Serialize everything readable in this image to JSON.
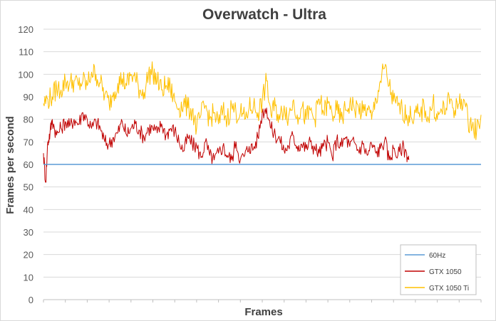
{
  "chart_data": {
    "type": "line",
    "title": "Overwatch - Ultra",
    "xlabel": "Frames",
    "ylabel": "Frames per second",
    "ylim": [
      0,
      120
    ],
    "yticks": [
      "0",
      "10",
      "20",
      "30",
      "40",
      "50",
      "60",
      "70",
      "80",
      "90",
      "100",
      "110",
      "120"
    ],
    "x_range": [
      0,
      1000
    ],
    "grid": "horizontal",
    "legend_position": "bottom-right",
    "series": [
      {
        "name": "60Hz",
        "color": "#5b9bd5",
        "x": [
          0,
          1000
        ],
        "values": [
          60,
          60
        ]
      },
      {
        "name": "GTX 1050",
        "color": "#c00000",
        "x": [
          0,
          5,
          10,
          15,
          20,
          30,
          40,
          50,
          60,
          70,
          80,
          90,
          100,
          110,
          120,
          130,
          140,
          150,
          160,
          170,
          180,
          190,
          200,
          210,
          220,
          230,
          240,
          250,
          260,
          270,
          280,
          290,
          300,
          310,
          320,
          330,
          340,
          350,
          360,
          370,
          380,
          390,
          400,
          410,
          420,
          430,
          440,
          450,
          460,
          470,
          480,
          490,
          500,
          510,
          520,
          530,
          540,
          550,
          560,
          570,
          580,
          590,
          600,
          610,
          620,
          630,
          640,
          650,
          660,
          670,
          680,
          690,
          700,
          710,
          720,
          730,
          740,
          750,
          760,
          770,
          780,
          790,
          800,
          810,
          820,
          830,
          835
        ],
        "values": [
          65,
          52,
          70,
          74,
          80,
          73,
          76,
          79,
          77,
          80,
          78,
          83,
          80,
          76,
          79,
          76,
          70,
          69,
          72,
          74,
          79,
          73,
          76,
          78,
          75,
          72,
          76,
          76,
          74,
          78,
          73,
          76,
          75,
          70,
          66,
          72,
          69,
          68,
          63,
          70,
          64,
          62,
          65,
          68,
          64,
          62,
          70,
          62,
          64,
          68,
          67,
          72,
          83,
          85,
          76,
          73,
          71,
          66,
          68,
          73,
          68,
          69,
          67,
          70,
          67,
          65,
          68,
          70,
          63,
          71,
          68,
          72,
          68,
          70,
          66,
          69,
          64,
          69,
          65,
          67,
          71,
          62,
          67,
          64,
          68,
          65,
          62
        ]
      },
      {
        "name": "GTX 1050 Ti",
        "color": "#ffc000",
        "x": [
          0,
          10,
          20,
          30,
          40,
          50,
          60,
          70,
          80,
          90,
          100,
          110,
          120,
          130,
          140,
          150,
          160,
          170,
          180,
          190,
          200,
          210,
          220,
          230,
          240,
          250,
          260,
          270,
          280,
          290,
          300,
          310,
          320,
          330,
          340,
          350,
          360,
          370,
          380,
          390,
          400,
          410,
          420,
          430,
          440,
          450,
          460,
          470,
          480,
          490,
          500,
          510,
          520,
          530,
          540,
          550,
          560,
          570,
          580,
          590,
          600,
          610,
          620,
          630,
          640,
          650,
          660,
          670,
          680,
          690,
          700,
          710,
          720,
          730,
          740,
          750,
          760,
          770,
          780,
          790,
          800,
          810,
          820,
          830,
          840,
          850,
          860,
          870,
          880,
          890,
          900,
          910,
          920,
          930,
          940,
          950,
          960,
          970,
          980,
          990,
          1000
        ],
        "values": [
          87,
          89,
          90,
          94,
          93,
          97,
          96,
          97,
          95,
          97,
          95,
          101,
          100,
          96,
          91,
          87,
          92,
          96,
          98,
          95,
          100,
          98,
          93,
          92,
          100,
          101,
          97,
          93,
          95,
          94,
          88,
          85,
          87,
          85,
          84,
          76,
          82,
          86,
          80,
          83,
          78,
          84,
          80,
          86,
          83,
          83,
          80,
          85,
          86,
          83,
          88,
          97,
          82,
          86,
          80,
          86,
          81,
          88,
          82,
          85,
          80,
          84,
          80,
          89,
          83,
          87,
          82,
          84,
          80,
          84,
          87,
          85,
          85,
          83,
          85,
          80,
          89,
          97,
          103,
          95,
          88,
          86,
          84,
          82,
          81,
          83,
          81,
          86,
          80,
          88,
          80,
          84,
          85,
          89,
          84,
          87,
          89,
          80,
          77,
          75,
          82
        ]
      }
    ],
    "legend_entries": [
      "60Hz",
      "GTX 1050",
      "GTX 1050 Ti"
    ]
  }
}
